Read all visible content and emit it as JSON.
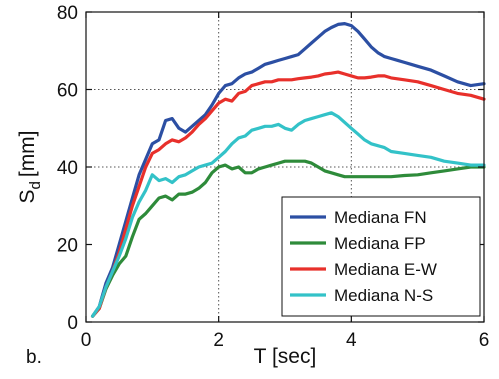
{
  "panel_label": "b.",
  "chart_data": {
    "type": "line",
    "title": "",
    "xlabel": "T [sec]",
    "ylabel_main": "S",
    "ylabel_sub": "d",
    "ylabel_unit": "[mm]",
    "xlim": [
      0,
      6
    ],
    "ylim": [
      0,
      80
    ],
    "xticks": [
      0,
      2,
      4,
      6
    ],
    "yticks": [
      0,
      20,
      40,
      60,
      80
    ],
    "dotted_gridlines": {
      "x": [
        2,
        4
      ],
      "y": [
        40,
        60
      ]
    },
    "legend_position": "bottom-right",
    "series": [
      {
        "name": "Mediana FN",
        "color": "#2c4fa3",
        "points": [
          [
            0.1,
            1.5
          ],
          [
            0.2,
            4
          ],
          [
            0.3,
            10
          ],
          [
            0.4,
            14
          ],
          [
            0.5,
            20
          ],
          [
            0.6,
            26
          ],
          [
            0.7,
            32
          ],
          [
            0.8,
            38
          ],
          [
            0.9,
            42
          ],
          [
            1.0,
            46
          ],
          [
            1.1,
            47
          ],
          [
            1.2,
            52
          ],
          [
            1.3,
            52.5
          ],
          [
            1.4,
            50
          ],
          [
            1.5,
            49
          ],
          [
            1.6,
            50.5
          ],
          [
            1.7,
            52
          ],
          [
            1.8,
            53.5
          ],
          [
            1.9,
            56
          ],
          [
            2.0,
            59
          ],
          [
            2.1,
            61
          ],
          [
            2.2,
            61.5
          ],
          [
            2.3,
            63
          ],
          [
            2.4,
            64
          ],
          [
            2.5,
            64.5
          ],
          [
            2.6,
            65.5
          ],
          [
            2.7,
            66.5
          ],
          [
            2.8,
            67
          ],
          [
            2.9,
            67.5
          ],
          [
            3.0,
            68
          ],
          [
            3.1,
            68.5
          ],
          [
            3.2,
            69
          ],
          [
            3.3,
            70.5
          ],
          [
            3.4,
            72
          ],
          [
            3.5,
            73.5
          ],
          [
            3.6,
            75
          ],
          [
            3.7,
            76
          ],
          [
            3.8,
            76.8
          ],
          [
            3.9,
            77
          ],
          [
            4.0,
            76.5
          ],
          [
            4.1,
            75
          ],
          [
            4.2,
            73
          ],
          [
            4.3,
            71
          ],
          [
            4.4,
            69.5
          ],
          [
            4.5,
            68.5
          ],
          [
            4.6,
            68
          ],
          [
            4.7,
            67.5
          ],
          [
            4.8,
            67
          ],
          [
            4.9,
            66.5
          ],
          [
            5.0,
            66
          ],
          [
            5.2,
            65
          ],
          [
            5.4,
            63.5
          ],
          [
            5.6,
            62
          ],
          [
            5.8,
            61
          ],
          [
            6.0,
            61.5
          ]
        ]
      },
      {
        "name": "Mediana FP",
        "color": "#2e8b3a",
        "points": [
          [
            0.1,
            1.5
          ],
          [
            0.2,
            3.5
          ],
          [
            0.3,
            8.5
          ],
          [
            0.4,
            12
          ],
          [
            0.5,
            15
          ],
          [
            0.6,
            17
          ],
          [
            0.7,
            22
          ],
          [
            0.8,
            26.5
          ],
          [
            0.9,
            28
          ],
          [
            1.0,
            30
          ],
          [
            1.1,
            32
          ],
          [
            1.2,
            32.5
          ],
          [
            1.3,
            31.5
          ],
          [
            1.4,
            33
          ],
          [
            1.5,
            33
          ],
          [
            1.6,
            33.5
          ],
          [
            1.7,
            34.5
          ],
          [
            1.8,
            36
          ],
          [
            1.9,
            38.5
          ],
          [
            2.0,
            40
          ],
          [
            2.1,
            40.5
          ],
          [
            2.2,
            39.5
          ],
          [
            2.3,
            40
          ],
          [
            2.4,
            38.5
          ],
          [
            2.5,
            38.5
          ],
          [
            2.6,
            39.5
          ],
          [
            2.7,
            40
          ],
          [
            2.8,
            40.5
          ],
          [
            2.9,
            41
          ],
          [
            3.0,
            41.5
          ],
          [
            3.1,
            41.5
          ],
          [
            3.2,
            41.5
          ],
          [
            3.3,
            41.5
          ],
          [
            3.4,
            41
          ],
          [
            3.5,
            40
          ],
          [
            3.6,
            39
          ],
          [
            3.7,
            38.5
          ],
          [
            3.8,
            38
          ],
          [
            3.9,
            37.5
          ],
          [
            4.0,
            37.5
          ],
          [
            4.2,
            37.5
          ],
          [
            4.4,
            37.5
          ],
          [
            4.6,
            37.5
          ],
          [
            4.8,
            37.8
          ],
          [
            5.0,
            38
          ],
          [
            5.2,
            38.5
          ],
          [
            5.4,
            39
          ],
          [
            5.6,
            39.5
          ],
          [
            5.8,
            40
          ],
          [
            6.0,
            40
          ]
        ]
      },
      {
        "name": "Mediana E-W",
        "color": "#e8302b",
        "points": [
          [
            0.1,
            1.5
          ],
          [
            0.2,
            3.5
          ],
          [
            0.3,
            9
          ],
          [
            0.4,
            13
          ],
          [
            0.5,
            18
          ],
          [
            0.6,
            24
          ],
          [
            0.7,
            30
          ],
          [
            0.8,
            35
          ],
          [
            0.9,
            40
          ],
          [
            1.0,
            43.5
          ],
          [
            1.1,
            44.5
          ],
          [
            1.2,
            46
          ],
          [
            1.3,
            47
          ],
          [
            1.4,
            46.5
          ],
          [
            1.5,
            47.5
          ],
          [
            1.6,
            49
          ],
          [
            1.7,
            51
          ],
          [
            1.8,
            52.5
          ],
          [
            1.9,
            54.5
          ],
          [
            2.0,
            56.5
          ],
          [
            2.1,
            57.5
          ],
          [
            2.2,
            57
          ],
          [
            2.3,
            59
          ],
          [
            2.4,
            59.5
          ],
          [
            2.5,
            61
          ],
          [
            2.6,
            61.5
          ],
          [
            2.7,
            62
          ],
          [
            2.8,
            62
          ],
          [
            2.9,
            62.5
          ],
          [
            3.0,
            62.5
          ],
          [
            3.1,
            62.5
          ],
          [
            3.2,
            62.8
          ],
          [
            3.3,
            63
          ],
          [
            3.4,
            63.2
          ],
          [
            3.5,
            63.5
          ],
          [
            3.6,
            64
          ],
          [
            3.7,
            64.2
          ],
          [
            3.8,
            64.5
          ],
          [
            3.9,
            64
          ],
          [
            4.0,
            63.5
          ],
          [
            4.1,
            63
          ],
          [
            4.2,
            63
          ],
          [
            4.3,
            63.2
          ],
          [
            4.4,
            63.5
          ],
          [
            4.5,
            63.5
          ],
          [
            4.6,
            63
          ],
          [
            4.8,
            62.5
          ],
          [
            5.0,
            62
          ],
          [
            5.2,
            61
          ],
          [
            5.4,
            60
          ],
          [
            5.6,
            59
          ],
          [
            5.8,
            58.5
          ],
          [
            6.0,
            57.5
          ]
        ]
      },
      {
        "name": "Mediana N-S",
        "color": "#33c2c8",
        "points": [
          [
            0.1,
            1.5
          ],
          [
            0.2,
            4
          ],
          [
            0.3,
            9
          ],
          [
            0.4,
            13
          ],
          [
            0.5,
            17
          ],
          [
            0.6,
            21.5
          ],
          [
            0.7,
            27
          ],
          [
            0.8,
            31
          ],
          [
            0.9,
            34
          ],
          [
            1.0,
            38
          ],
          [
            1.1,
            36.5
          ],
          [
            1.2,
            37
          ],
          [
            1.3,
            36
          ],
          [
            1.4,
            37.5
          ],
          [
            1.5,
            38
          ],
          [
            1.6,
            39
          ],
          [
            1.7,
            40
          ],
          [
            1.8,
            40.5
          ],
          [
            1.9,
            41
          ],
          [
            2.0,
            42.5
          ],
          [
            2.1,
            44
          ],
          [
            2.2,
            46
          ],
          [
            2.3,
            47.5
          ],
          [
            2.4,
            48
          ],
          [
            2.5,
            49.5
          ],
          [
            2.6,
            50
          ],
          [
            2.7,
            50.5
          ],
          [
            2.8,
            50.5
          ],
          [
            2.9,
            51
          ],
          [
            3.0,
            50
          ],
          [
            3.1,
            49.5
          ],
          [
            3.2,
            51
          ],
          [
            3.3,
            52
          ],
          [
            3.4,
            52.5
          ],
          [
            3.5,
            53
          ],
          [
            3.6,
            53.5
          ],
          [
            3.7,
            54
          ],
          [
            3.8,
            53
          ],
          [
            3.9,
            51.5
          ],
          [
            4.0,
            50
          ],
          [
            4.1,
            48.5
          ],
          [
            4.2,
            47
          ],
          [
            4.3,
            46
          ],
          [
            4.4,
            45.5
          ],
          [
            4.5,
            45
          ],
          [
            4.6,
            44
          ],
          [
            4.8,
            43.5
          ],
          [
            5.0,
            43
          ],
          [
            5.2,
            42.5
          ],
          [
            5.4,
            41.5
          ],
          [
            5.6,
            41
          ],
          [
            5.8,
            40.5
          ],
          [
            6.0,
            40.5
          ]
        ]
      }
    ]
  }
}
